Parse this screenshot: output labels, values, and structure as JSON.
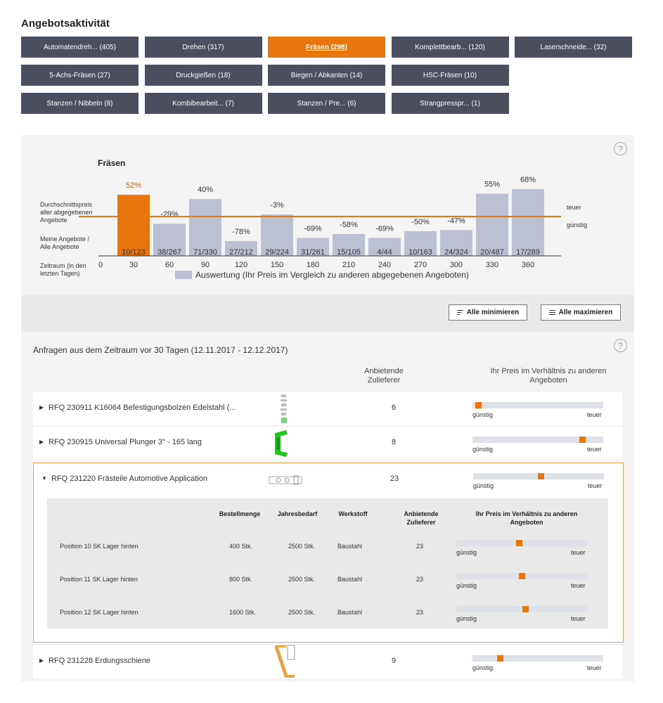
{
  "page_title": "Angebotsaktivität",
  "categories": [
    {
      "label": "Automatendreh... (405)",
      "active": false
    },
    {
      "label": "Drehen (317)",
      "active": false
    },
    {
      "label": "Fräsen (298)",
      "active": true
    },
    {
      "label": "Komplettbearb... (120)",
      "active": false
    },
    {
      "label": "Laserschneide... (32)",
      "active": false
    },
    {
      "label": "5-Achs-Fräsen (27)",
      "active": false
    },
    {
      "label": "Druckgießen (18)",
      "active": false
    },
    {
      "label": "Biegen / Abkanten (14)",
      "active": false
    },
    {
      "label": "HSC-Fräsen (10)",
      "active": false
    },
    {
      "label": "Stanzen / Nibbeln (8)",
      "active": false
    },
    {
      "label": "Kombibearbeit... (7)",
      "active": false
    },
    {
      "label": "Stanzen / Pre... (6)",
      "active": false
    },
    {
      "label": "Strangpresspr... (1)",
      "active": false
    }
  ],
  "chart_data": {
    "type": "bar",
    "title": "Fräsen",
    "row_labels": {
      "avg_price": "Durchschnittspreis aller abgegebenen Angebote",
      "my_offers": "Meine Angebote / Alle Angebote",
      "period": "Zeitraum (in den letzten Tagen)"
    },
    "axis_zero": "0",
    "categories": [
      "30",
      "60",
      "90",
      "120",
      "150",
      "180",
      "210",
      "240",
      "270",
      "300",
      "330",
      "360"
    ],
    "values": [
      52,
      -29,
      40,
      -78,
      -3,
      -69,
      -58,
      -69,
      -50,
      -47,
      55,
      68
    ],
    "value_labels": [
      "52%",
      "-29%",
      "40%",
      "-78%",
      "-3%",
      "-69%",
      "-58%",
      "-69%",
      "-50%",
      "-47%",
      "55%",
      "68%"
    ],
    "counts": [
      "10/123",
      "38/267",
      "71/330",
      "27/212",
      "29/224",
      "31/261",
      "15/105",
      "4/44",
      "10/163",
      "24/324",
      "20/487",
      "17/289"
    ],
    "highlight_index": 0,
    "right_labels": {
      "high": "teuer",
      "low": "günstig"
    },
    "legend": "Auswertung (Ihr Preis im Vergleich zu anderen abgegebenen Angeboten)",
    "colors": {
      "bar": "#bcc0d5",
      "highlight": "#e8760c",
      "avg_line": "#e8760c"
    }
  },
  "toolbar": {
    "minimize_label": "Alle minimieren",
    "maximize_label": "Alle maximieren"
  },
  "list": {
    "header": "Anfragen aus dem Zeitraum vor 30 Tagen (12.11.2017 - 12.12.2017)",
    "col_suppliers": "Anbietende Zulieferer",
    "col_price": "Ihr Preis im Verhältnis zu anderen Angeboten",
    "low_label": "günstig",
    "high_label": "teuer",
    "rows": [
      {
        "title": "RFQ 230911 K16064 Befestigungsbolzen Edelstahl (...",
        "suppliers": "6",
        "price_pos": 0.02,
        "expanded": false
      },
      {
        "title": "RFQ 230915 Universal Plunger 3\" - 165 lang",
        "suppliers": "8",
        "price_pos": 0.86,
        "expanded": false
      },
      {
        "title": "RFQ 231220 Frästeile Automotive Application",
        "suppliers": "23",
        "price_pos": 0.52,
        "expanded": true
      },
      {
        "title": "RFQ 231228 Erdungsschiene",
        "suppliers": "9",
        "price_pos": 0.2,
        "expanded": false
      }
    ],
    "sub_headers": {
      "qty": "Bestellmenge",
      "annual": "Jahresbedarf",
      "material": "Werkstoff",
      "suppliers": "Anbietende Zulieferer",
      "price": "Ihr Preis im Verhältnis zu anderen Angeboten"
    },
    "positions": [
      {
        "name": "Position 10 SK Lager hinten",
        "qty": "400 Stk.",
        "annual": "2500 Stk.",
        "material": "Baustahl",
        "suppliers": "23",
        "price_pos": 0.48
      },
      {
        "name": "Position 11 SK Lager hinten",
        "qty": "800 Stk.",
        "annual": "2500 Stk.",
        "material": "Baustahl",
        "suppliers": "23",
        "price_pos": 0.5
      },
      {
        "name": "Position 12 SK Lager hinten",
        "qty": "1600 Stk.",
        "annual": "2500 Stk.",
        "material": "Baustahl",
        "suppliers": "23",
        "price_pos": 0.53
      }
    ]
  }
}
